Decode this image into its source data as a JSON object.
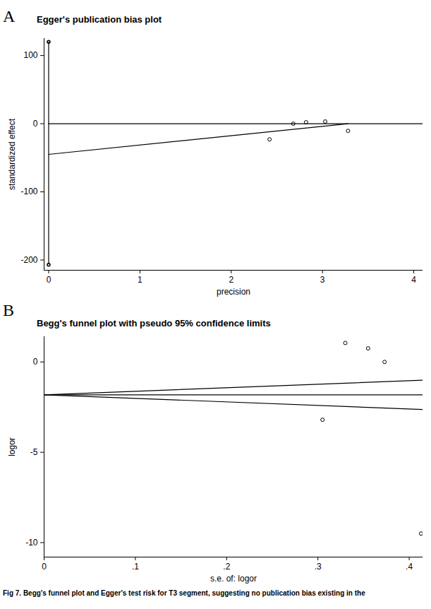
{
  "caption": "Fig 7. Begg's funnel plot and Egger's test risk for T3 segment, suggesting no publication bias existing in the",
  "chart_data": [
    {
      "type": "scatter",
      "panel": "A",
      "title": "Egger's publication bias plot",
      "x_label": "precision",
      "y_label": "standardized effect",
      "x": [
        2.42,
        2.68,
        2.82,
        3.03,
        3.28
      ],
      "values": [
        -23,
        0,
        2.1,
        3.2,
        -10.5
      ],
      "marker": "circle",
      "xlim": [
        -0.05,
        4.1
      ],
      "ylim": [
        -215,
        125
      ],
      "xticks": [
        0,
        1,
        2,
        3,
        4
      ],
      "yticks": [
        -200,
        -100,
        0,
        100
      ],
      "lines": [
        {
          "x": [
            0,
            4.1
          ],
          "y": [
            0,
            0
          ]
        },
        {
          "x": [
            0,
            3.28
          ],
          "y": [
            -45,
            0
          ]
        }
      ],
      "intercept_ci": {
        "x": 0,
        "lower": -207,
        "upper": 120
      }
    },
    {
      "type": "scatter",
      "panel": "B",
      "title": "Begg's funnel plot with pseudo 95% confidence limits",
      "x_label": "s.e. of: logor",
      "y_label": "logor",
      "x": [
        0.305,
        0.33,
        0.355,
        0.373,
        0.413
      ],
      "values": [
        -3.2,
        1.05,
        0.75,
        0.0,
        -9.5
      ],
      "marker": "circle",
      "xlim": [
        0,
        0.415
      ],
      "ylim": [
        -10.8,
        1.4
      ],
      "xticks": [
        0,
        {
          "value": 0.1,
          "label": ".1"
        },
        {
          "value": 0.2,
          "label": ".2"
        },
        {
          "value": 0.3,
          "label": ".3"
        },
        {
          "value": 0.4,
          "label": ".4"
        }
      ],
      "yticks": [
        -10,
        -5,
        0
      ],
      "lines": [
        {
          "x": [
            0,
            0.415
          ],
          "y": [
            -1.82,
            -1.82
          ]
        },
        {
          "x": [
            0,
            0.415
          ],
          "y": [
            -1.82,
            -1.01
          ]
        },
        {
          "x": [
            0,
            0.415
          ],
          "y": [
            -1.82,
            -2.63
          ]
        }
      ]
    }
  ]
}
